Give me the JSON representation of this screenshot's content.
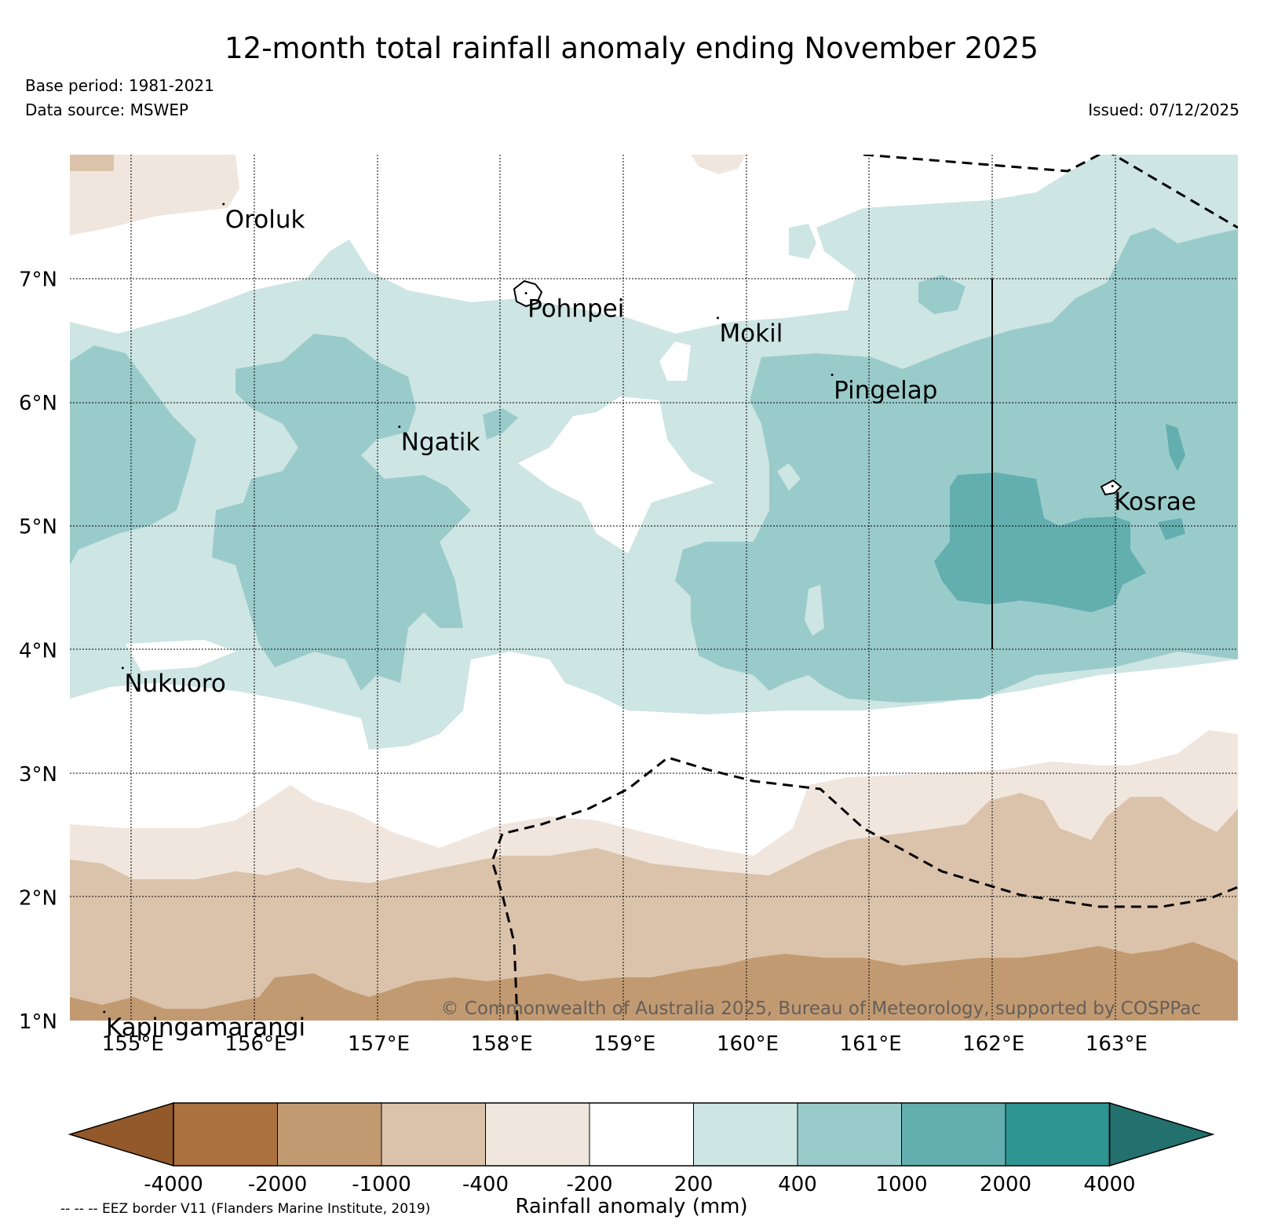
{
  "header": {
    "title": "12-month total rainfall anomaly ending November 2025",
    "base_period": "Base period: 1981-2021",
    "data_source": "Data source: MSWEP",
    "issued": "Issued: 07/12/2025"
  },
  "map": {
    "lon_range": [
      154.5,
      164.0
    ],
    "lat_range": [
      1.0,
      8.0
    ],
    "x_ticks": [
      {
        "value": 155,
        "label": "155°E"
      },
      {
        "value": 156,
        "label": "156°E"
      },
      {
        "value": 157,
        "label": "157°E"
      },
      {
        "value": 158,
        "label": "158°E"
      },
      {
        "value": 159,
        "label": "159°E"
      },
      {
        "value": 160,
        "label": "160°E"
      },
      {
        "value": 161,
        "label": "161°E"
      },
      {
        "value": 162,
        "label": "162°E"
      },
      {
        "value": 163,
        "label": "163°E"
      }
    ],
    "y_ticks": [
      {
        "value": 1,
        "label": "1°N"
      },
      {
        "value": 2,
        "label": "2°N"
      },
      {
        "value": 3,
        "label": "3°N"
      },
      {
        "value": 4,
        "label": "4°N"
      },
      {
        "value": 5,
        "label": "5°N"
      },
      {
        "value": 6,
        "label": "6°N"
      },
      {
        "value": 7,
        "label": "7°N"
      }
    ],
    "places": [
      {
        "name": "Oroluk",
        "lon": 155.75,
        "lat": 7.6
      },
      {
        "name": "Pohnpei",
        "lon": 158.21,
        "lat": 6.88
      },
      {
        "name": "Mokil",
        "lon": 159.77,
        "lat": 6.68
      },
      {
        "name": "Pingelap",
        "lon": 160.7,
        "lat": 6.22
      },
      {
        "name": "Ngatik",
        "lon": 157.18,
        "lat": 5.8
      },
      {
        "name": "Kosrae",
        "lon": 162.98,
        "lat": 5.32
      },
      {
        "name": "Nukuoro",
        "lon": 154.93,
        "lat": 3.85
      },
      {
        "name": "Kapingamarangi",
        "lon": 154.78,
        "lat": 1.07
      }
    ],
    "copyright": "© Commonwealth of Australia 2025, Bureau of Meteorology, supported by COSPPac"
  },
  "colorbar": {
    "colors": [
      "#94592a",
      "#ab723f",
      "#c29a72",
      "#dbc3ab",
      "#f0e6dd",
      "#ffffff",
      "#cde5e3",
      "#9acbcb",
      "#63aeae",
      "#2e9592",
      "#22716e"
    ],
    "tick_labels": [
      "-4000",
      "-2000",
      "-1000",
      "-400",
      "-200",
      "200",
      "400",
      "1000",
      "2000",
      "4000"
    ],
    "label": "Rainfall anomaly (mm)"
  },
  "footer": {
    "eez_note": "-- -- -- EEZ border V11 (Flanders Marine Institute, 2019)"
  }
}
